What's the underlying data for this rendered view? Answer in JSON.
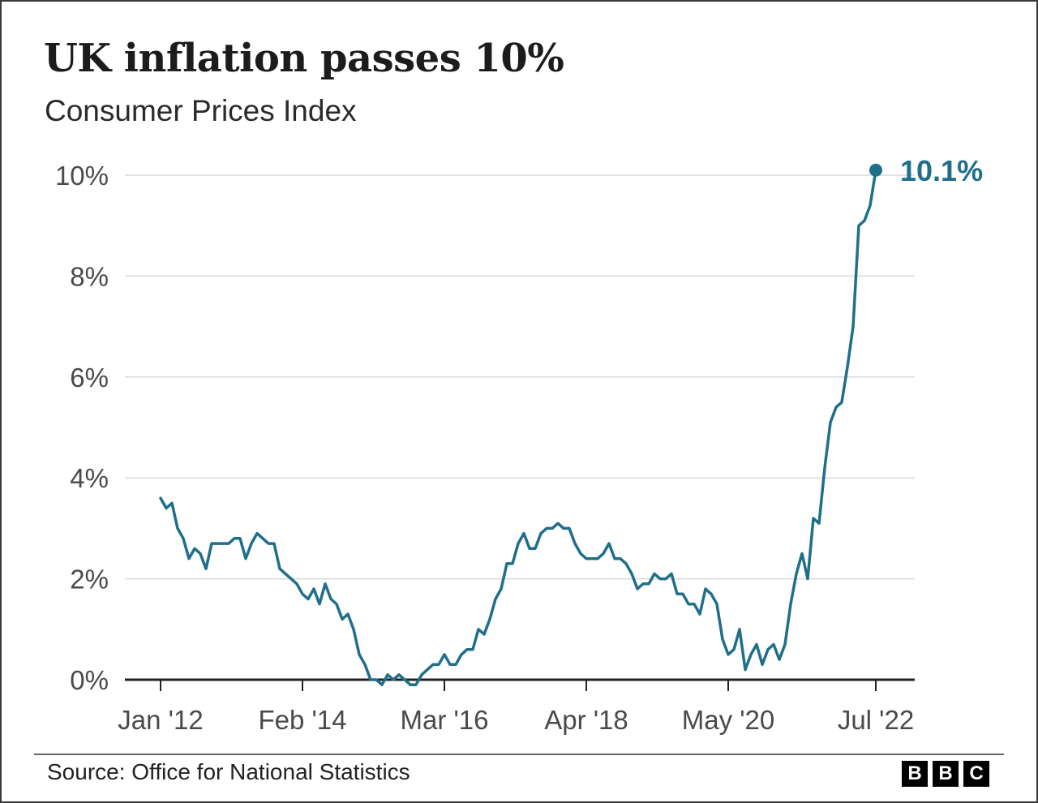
{
  "title": "UK inflation passes 10%",
  "subtitle": "Consumer Prices Index",
  "source": "Source: Office for National Statistics",
  "logo": [
    "B",
    "B",
    "C"
  ],
  "colors": {
    "line": "#1f6f8b",
    "grid": "#d9d9d9",
    "axis": "#222222",
    "text": "#222222"
  },
  "chart_data": {
    "type": "line",
    "title": "UK inflation passes 10%",
    "subtitle": "Consumer Prices Index",
    "xlabel": "",
    "ylabel": "",
    "ylim": [
      0,
      10
    ],
    "yticks": [
      0,
      2,
      4,
      6,
      8,
      10
    ],
    "ytick_labels": [
      "0%",
      "2%",
      "4%",
      "6%",
      "8%",
      "10%"
    ],
    "x_start": "Jan 2012",
    "x_end": "Jul 2022",
    "xtick_labels": [
      "Jan '12",
      "Feb '14",
      "Mar '16",
      "Apr '18",
      "May '20",
      "Jul '22"
    ],
    "xtick_months": [
      "2012-01",
      "2014-02",
      "2016-03",
      "2018-04",
      "2020-05",
      "2022-07"
    ],
    "grid": "horizontal",
    "end_label": "10.1%",
    "series": [
      {
        "values": [
          3.6,
          3.4,
          3.5,
          3.0,
          2.8,
          2.4,
          2.6,
          2.5,
          2.2,
          2.7,
          2.7,
          2.7,
          2.7,
          2.8,
          2.8,
          2.4,
          2.7,
          2.9,
          2.8,
          2.7,
          2.7,
          2.2,
          2.1,
          2.0,
          1.9,
          1.7,
          1.6,
          1.8,
          1.5,
          1.9,
          1.6,
          1.5,
          1.2,
          1.3,
          1.0,
          0.5,
          0.3,
          0.0,
          0.0,
          -0.1,
          0.1,
          0.0,
          0.1,
          0.0,
          -0.1,
          -0.1,
          0.1,
          0.2,
          0.3,
          0.3,
          0.5,
          0.3,
          0.3,
          0.5,
          0.6,
          0.6,
          1.0,
          0.9,
          1.2,
          1.6,
          1.8,
          2.3,
          2.3,
          2.7,
          2.9,
          2.6,
          2.6,
          2.9,
          3.0,
          3.0,
          3.1,
          3.0,
          3.0,
          2.7,
          2.5,
          2.4,
          2.4,
          2.4,
          2.5,
          2.7,
          2.4,
          2.4,
          2.3,
          2.1,
          1.8,
          1.9,
          1.9,
          2.1,
          2.0,
          2.0,
          2.1,
          1.7,
          1.7,
          1.5,
          1.5,
          1.3,
          1.8,
          1.7,
          1.5,
          0.8,
          0.5,
          0.6,
          1.0,
          0.2,
          0.5,
          0.7,
          0.3,
          0.6,
          0.7,
          0.4,
          0.7,
          1.5,
          2.1,
          2.5,
          2.0,
          3.2,
          3.1,
          4.2,
          5.1,
          5.4,
          5.5,
          6.2,
          7.0,
          9.0,
          9.1,
          9.4,
          10.1
        ]
      }
    ]
  }
}
